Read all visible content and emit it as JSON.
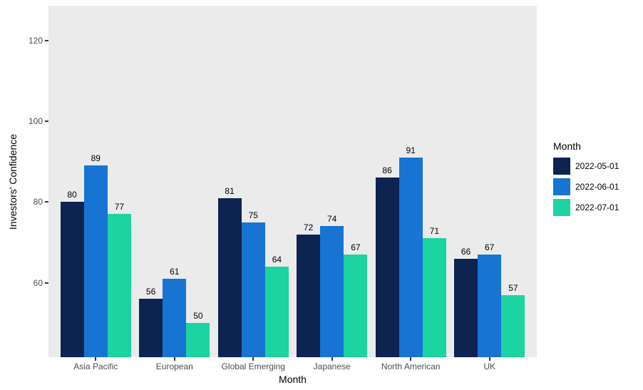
{
  "chart_data": {
    "type": "bar",
    "title": "",
    "categories": [
      "Asia Pacific",
      "European",
      "Global Emerging",
      "Japanese",
      "North American",
      "UK"
    ],
    "series": [
      {
        "name": "2022-05-01",
        "color": "#0d2350",
        "values": [
          80,
          56,
          81,
          72,
          86,
          66
        ]
      },
      {
        "name": "2022-06-01",
        "color": "#1874d2",
        "values": [
          89,
          61,
          75,
          74,
          91,
          67
        ]
      },
      {
        "name": "2022-07-01",
        "color": "#1cd3a2",
        "values": [
          77,
          50,
          64,
          67,
          71,
          57
        ]
      }
    ],
    "xlabel": "Month",
    "ylabel": "Investors' Confidence",
    "legend_title": "Month",
    "legend_position": "right",
    "y_ticks": [
      60,
      80,
      100,
      120
    ],
    "y_domain": [
      41.6,
      128.6
    ],
    "grid": false,
    "bar_value_labels": true,
    "panel_bg": "#ebebeb",
    "tick_color": "#333333",
    "axis_text_color": "#4d4d4d"
  }
}
